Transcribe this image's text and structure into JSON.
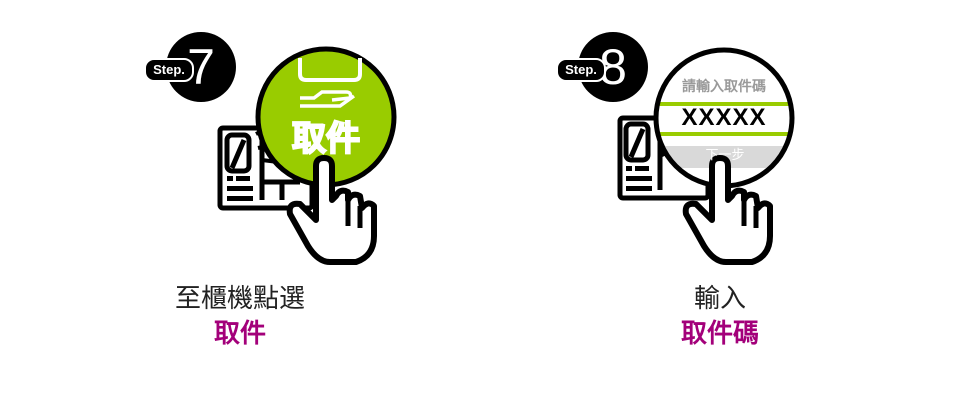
{
  "steps": [
    {
      "badge_label": "Step.",
      "badge_number": "7",
      "button_label": "取件",
      "caption_line1": "至櫃機點選",
      "caption_line2": "取件"
    },
    {
      "badge_label": "Step.",
      "badge_number": "8",
      "screen_prompt": "請輸入取件碼",
      "screen_code": "XXXXX",
      "screen_next": "下一步",
      "caption_line1": "輸入",
      "caption_line2": "取件碼"
    }
  ],
  "colors": {
    "accent_green": "#99cc00",
    "caption_highlight": "#a3007a",
    "badge": "#000000"
  },
  "icons": [
    "kiosk-icon",
    "pointing-hand-icon",
    "package-hand-icon"
  ]
}
